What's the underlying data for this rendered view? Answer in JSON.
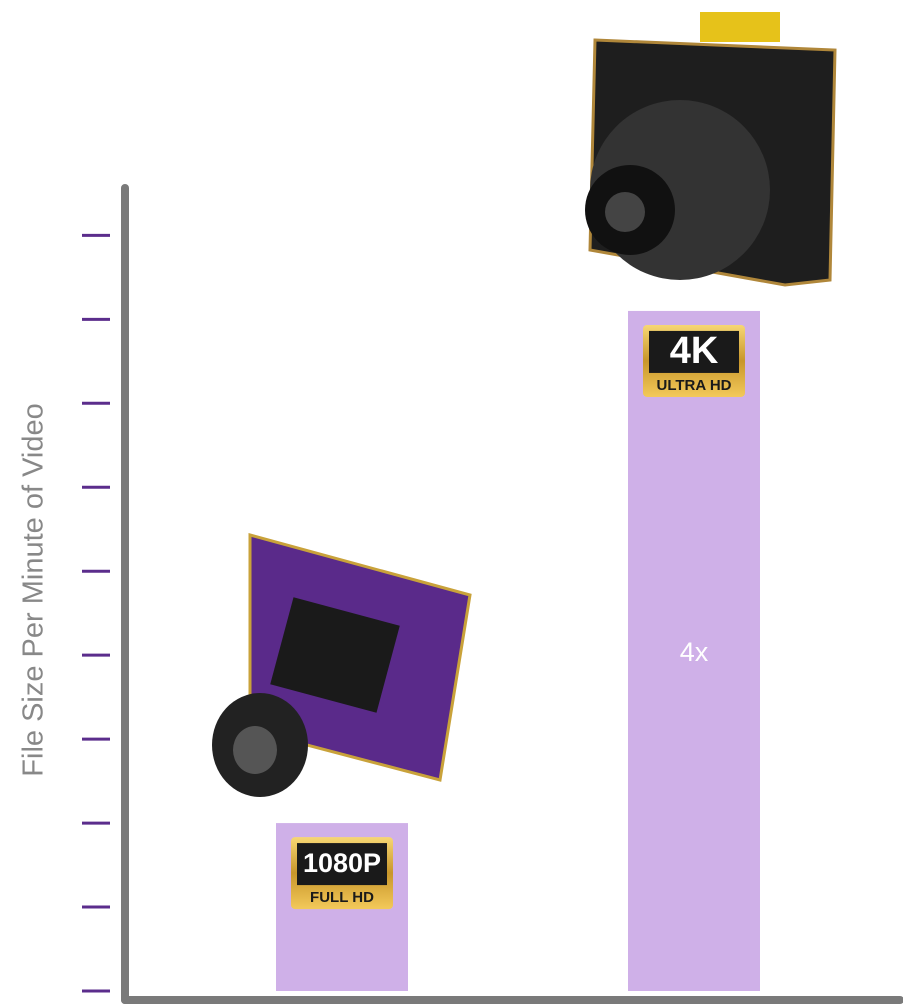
{
  "chart_data": {
    "type": "bar",
    "y_label": "File Size Per Minute of Video",
    "categories": [
      "1080P",
      "4K"
    ],
    "category_subtitles": [
      "FULL HD",
      "ULTRA HD"
    ],
    "values": [
      2,
      8.1
    ],
    "annotation": "4x",
    "color": "#cfb0e8",
    "tick_color": "#5b2d8c",
    "ylim": [
      0,
      9.6
    ],
    "yticks": [
      0,
      1,
      2,
      3,
      4,
      5,
      6,
      7,
      8,
      9
    ]
  }
}
